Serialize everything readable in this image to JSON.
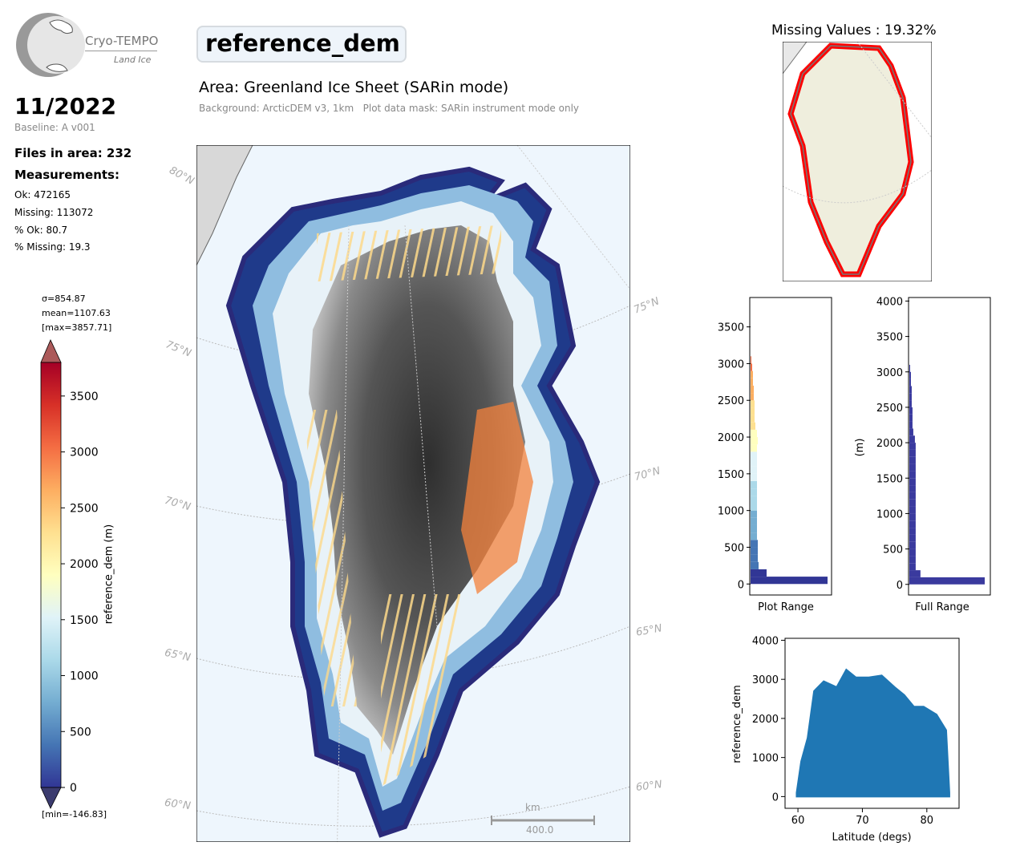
{
  "logo": {
    "name": "Cryo-TEMPO",
    "sub": "Land Ice"
  },
  "header": {
    "date": "11/2022",
    "baseline": "Baseline: A v001",
    "variable": "reference_dem",
    "area": "Area: Greenland Ice Sheet (SARin mode)",
    "background": "Background: ArcticDEM v3, 1km   Plot data mask: SARin instrument mode only"
  },
  "stats": {
    "files": "Files in area: 232",
    "measurements_heading": "Measurements:",
    "ok": "Ok: 472165",
    "missing": "Missing: 113072",
    "pct_ok": "% Ok: 80.7",
    "pct_missing": "% Missing: 19.3"
  },
  "colorbar": {
    "sigma": "σ=854.87",
    "mean": "mean=1107.63",
    "max": "[max=3857.71]",
    "min": "[min=-146.83]",
    "label": "reference_dem (m)",
    "ticks": [
      "0",
      "500",
      "1000",
      "1500",
      "2000",
      "2500",
      "3000",
      "3500"
    ],
    "colors": [
      "#313695",
      "#4575b4",
      "#74add1",
      "#abd9e9",
      "#e0f3f8",
      "#ffffbf",
      "#fee090",
      "#fdae61",
      "#f46d43",
      "#d73027",
      "#a50026"
    ]
  },
  "map": {
    "lat_labels_left": [
      "80°N",
      "75°N",
      "70°N",
      "65°N",
      "60°N"
    ],
    "lat_labels_right": [
      "75°N",
      "70°N",
      "65°N",
      "60°N"
    ],
    "scale_unit": "km",
    "scale_value": "400.0"
  },
  "missing_map": {
    "title": "Missing Values : 19.32%"
  },
  "chart_data": [
    {
      "type": "bar",
      "orientation": "horizontal",
      "xlabel": "Plot Range",
      "ylabel": "",
      "ylim": [
        -150,
        3900
      ],
      "yticks": [
        0,
        500,
        1000,
        1500,
        2000,
        2500,
        3000,
        3500
      ],
      "bins": [
        0,
        100,
        200,
        300,
        400,
        500,
        600,
        700,
        800,
        900,
        1000,
        1100,
        1200,
        1300,
        1400,
        1500,
        1600,
        1700,
        1800,
        1900,
        2000,
        2100,
        2200,
        2300,
        2400,
        2500,
        2600,
        2700,
        2800,
        2900,
        3000
      ],
      "values": [
        96,
        20,
        10,
        9,
        9,
        9,
        8,
        8,
        8,
        8,
        8,
        8,
        8,
        8,
        8,
        8,
        8,
        8,
        8,
        9,
        8,
        6,
        5,
        5,
        5,
        4,
        4,
        3,
        3,
        2,
        1
      ]
    },
    {
      "type": "bar",
      "orientation": "horizontal",
      "xlabel": "Full Range",
      "ylabel": "(m)",
      "ylim": [
        -150,
        4050
      ],
      "yticks": [
        0,
        500,
        1000,
        1500,
        2000,
        2500,
        3000,
        3500,
        4000
      ],
      "bins": [
        0,
        100,
        200,
        300,
        400,
        500,
        600,
        700,
        800,
        900,
        1000,
        1100,
        1200,
        1300,
        1400,
        1500,
        1600,
        1700,
        1800,
        1900,
        2000,
        2100,
        2200,
        2300,
        2400,
        2500,
        2600,
        2700,
        2800,
        2900,
        3000
      ],
      "values": [
        95,
        14,
        8,
        8,
        8,
        8,
        8,
        8,
        8,
        8,
        8,
        8,
        8,
        8,
        8,
        8,
        8,
        8,
        8,
        8,
        7,
        5,
        4,
        4,
        4,
        3,
        3,
        3,
        2,
        2,
        1
      ],
      "color": "#3a3a9e"
    },
    {
      "type": "scatter",
      "xlabel": "Latitude (degs)",
      "ylabel": "reference_dem",
      "xlim": [
        58,
        85
      ],
      "ylim": [
        -300,
        4050
      ],
      "xticks": [
        60,
        70,
        80
      ],
      "yticks": [
        0,
        1000,
        2000,
        3000,
        4000
      ],
      "envelope": [
        [
          59.8,
          100
        ],
        [
          60.5,
          900
        ],
        [
          61.5,
          1500
        ],
        [
          62.5,
          2700
        ],
        [
          64,
          2950
        ],
        [
          66,
          2800
        ],
        [
          67.5,
          3250
        ],
        [
          69,
          3050
        ],
        [
          71,
          3050
        ],
        [
          73,
          3100
        ],
        [
          75,
          2800
        ],
        [
          76.5,
          2600
        ],
        [
          78,
          2300
        ],
        [
          79.5,
          2300
        ],
        [
          81.5,
          2100
        ],
        [
          83,
          1700
        ],
        [
          83.5,
          100
        ]
      ],
      "color": "#1f77b4"
    }
  ]
}
